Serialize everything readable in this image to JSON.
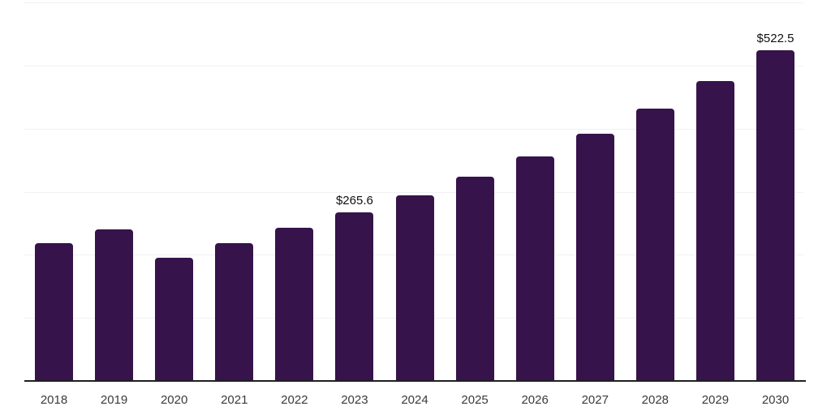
{
  "chart_data": {
    "type": "bar",
    "title": "",
    "xlabel": "",
    "ylabel": "",
    "categories": [
      "2018",
      "2019",
      "2020",
      "2021",
      "2022",
      "2023",
      "2024",
      "2025",
      "2026",
      "2027",
      "2028",
      "2029",
      "2030"
    ],
    "values": [
      217.5,
      239.5,
      194.0,
      217.0,
      241.5,
      265.6,
      292.5,
      322.4,
      354.5,
      390.5,
      431.0,
      474.5,
      522.5
    ],
    "data_labels": [
      {
        "category": "2023",
        "text": "$265.6"
      },
      {
        "category": "2030",
        "text": "$522.5"
      }
    ],
    "ylim": [
      0,
      600
    ],
    "grid_step": 100,
    "grid": true,
    "legend": false,
    "y_axis_tick_labels_visible": false,
    "colors": {
      "bar": "#36134B",
      "axis_line": "#1F1F1F",
      "gridline": "#F1F1F4",
      "tick_label": "#3A3A3A",
      "data_label": "#101010",
      "background": "#FFFFFF"
    }
  }
}
